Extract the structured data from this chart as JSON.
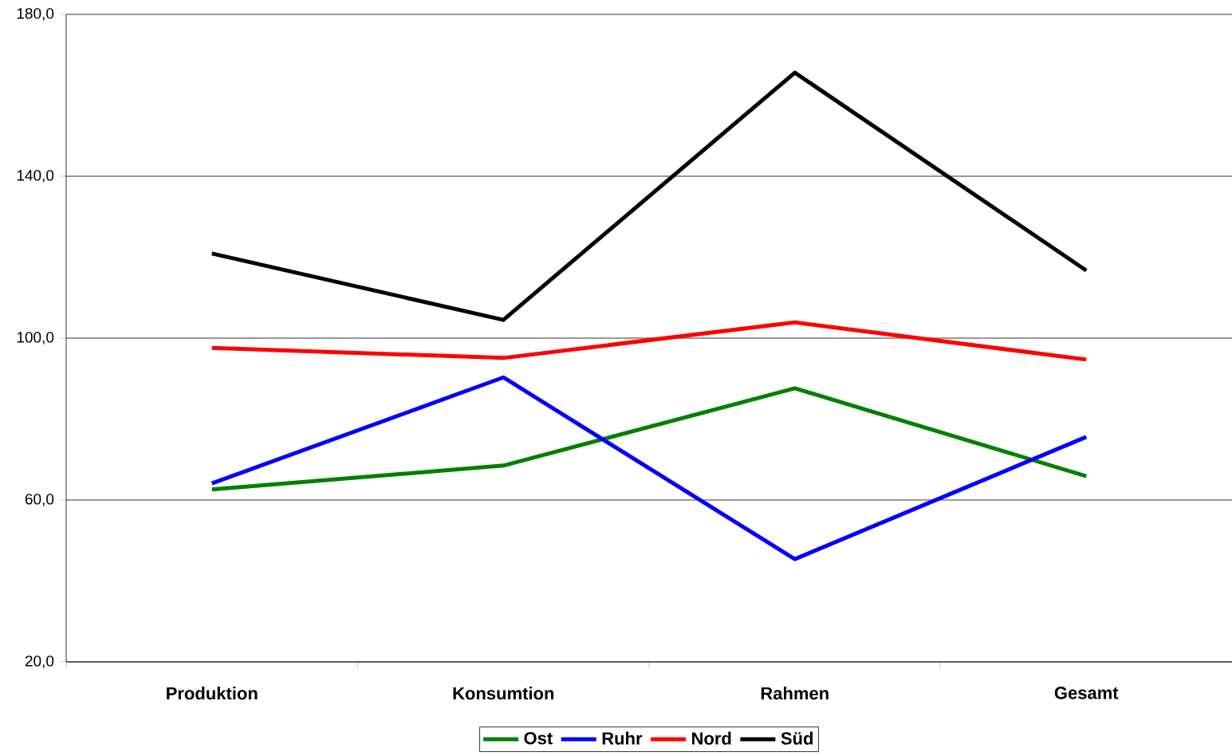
{
  "chart_data": {
    "type": "line",
    "categories": [
      "Produktion",
      "Konsumtion",
      "Rahmen",
      "Gesamt"
    ],
    "series": [
      {
        "name": "Ost",
        "color": "#008000",
        "values": [
          62.6,
          68.5,
          87.6,
          65.9
        ]
      },
      {
        "name": "Ruhr",
        "color": "#0000ff",
        "values": [
          64.1,
          90.3,
          45.4,
          75.6
        ]
      },
      {
        "name": "Nord",
        "color": "#ff0000",
        "values": [
          97.6,
          95.1,
          103.9,
          94.7
        ]
      },
      {
        "name": "Süd",
        "color": "#000000",
        "values": [
          120.9,
          104.5,
          165.6,
          116.7
        ]
      }
    ],
    "ylim": [
      20,
      180
    ],
    "yticks": [
      {
        "value": 20,
        "label": "20,0"
      },
      {
        "value": 60,
        "label": "60,0"
      },
      {
        "value": 100,
        "label": "100,0"
      },
      {
        "value": 140,
        "label": "140,0"
      },
      {
        "value": 180,
        "label": "180,0"
      }
    ],
    "grid": "y",
    "legend": "bottom",
    "marker": "none",
    "line_style": "solid"
  }
}
